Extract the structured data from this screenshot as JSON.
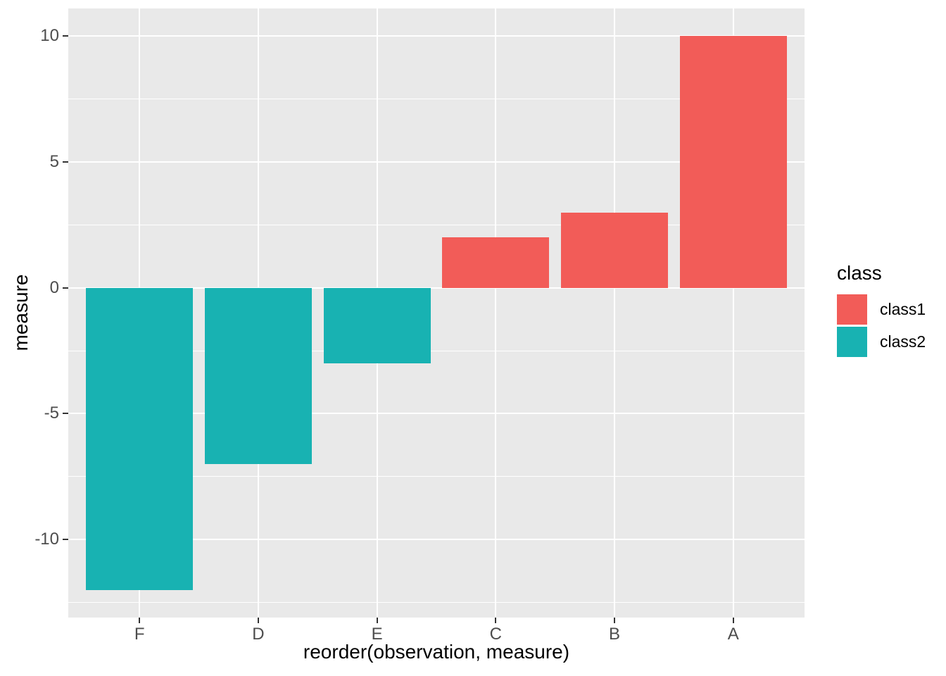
{
  "chart_data": {
    "type": "bar",
    "title": "",
    "xlabel": "reorder(observation, measure)",
    "ylabel": "measure",
    "categories": [
      "F",
      "D",
      "E",
      "C",
      "B",
      "A"
    ],
    "values": [
      -12,
      -7,
      -3,
      2,
      3,
      10
    ],
    "bar_classes": [
      "class2",
      "class2",
      "class2",
      "class1",
      "class1",
      "class1"
    ],
    "class_colors": {
      "class1": "#F25C58",
      "class2": "#18B2B2"
    },
    "ylim": [
      -13.1,
      11.1
    ],
    "yticks_major": [
      10,
      5,
      0,
      -5,
      -10
    ],
    "ytick_labels": [
      "10",
      "5",
      "0",
      "-5",
      "-10"
    ],
    "yticks_minor": [
      7.5,
      2.5,
      -2.5,
      -7.5,
      -12.5
    ],
    "grid": "horizontal major+minor, vertical major at category centers",
    "legend_position": "right",
    "legend": {
      "title": "class",
      "entries": [
        {
          "label": "class1",
          "color": "#F25C58"
        },
        {
          "label": "class2",
          "color": "#18B2B2"
        }
      ]
    },
    "style": {
      "panel_background": "#E9E9E9",
      "gridline_color": "#FFFFFF",
      "tick_mark_color": "#333333",
      "tick_label_color": "#4D4D4D",
      "axis_title_color": "#000000"
    }
  }
}
